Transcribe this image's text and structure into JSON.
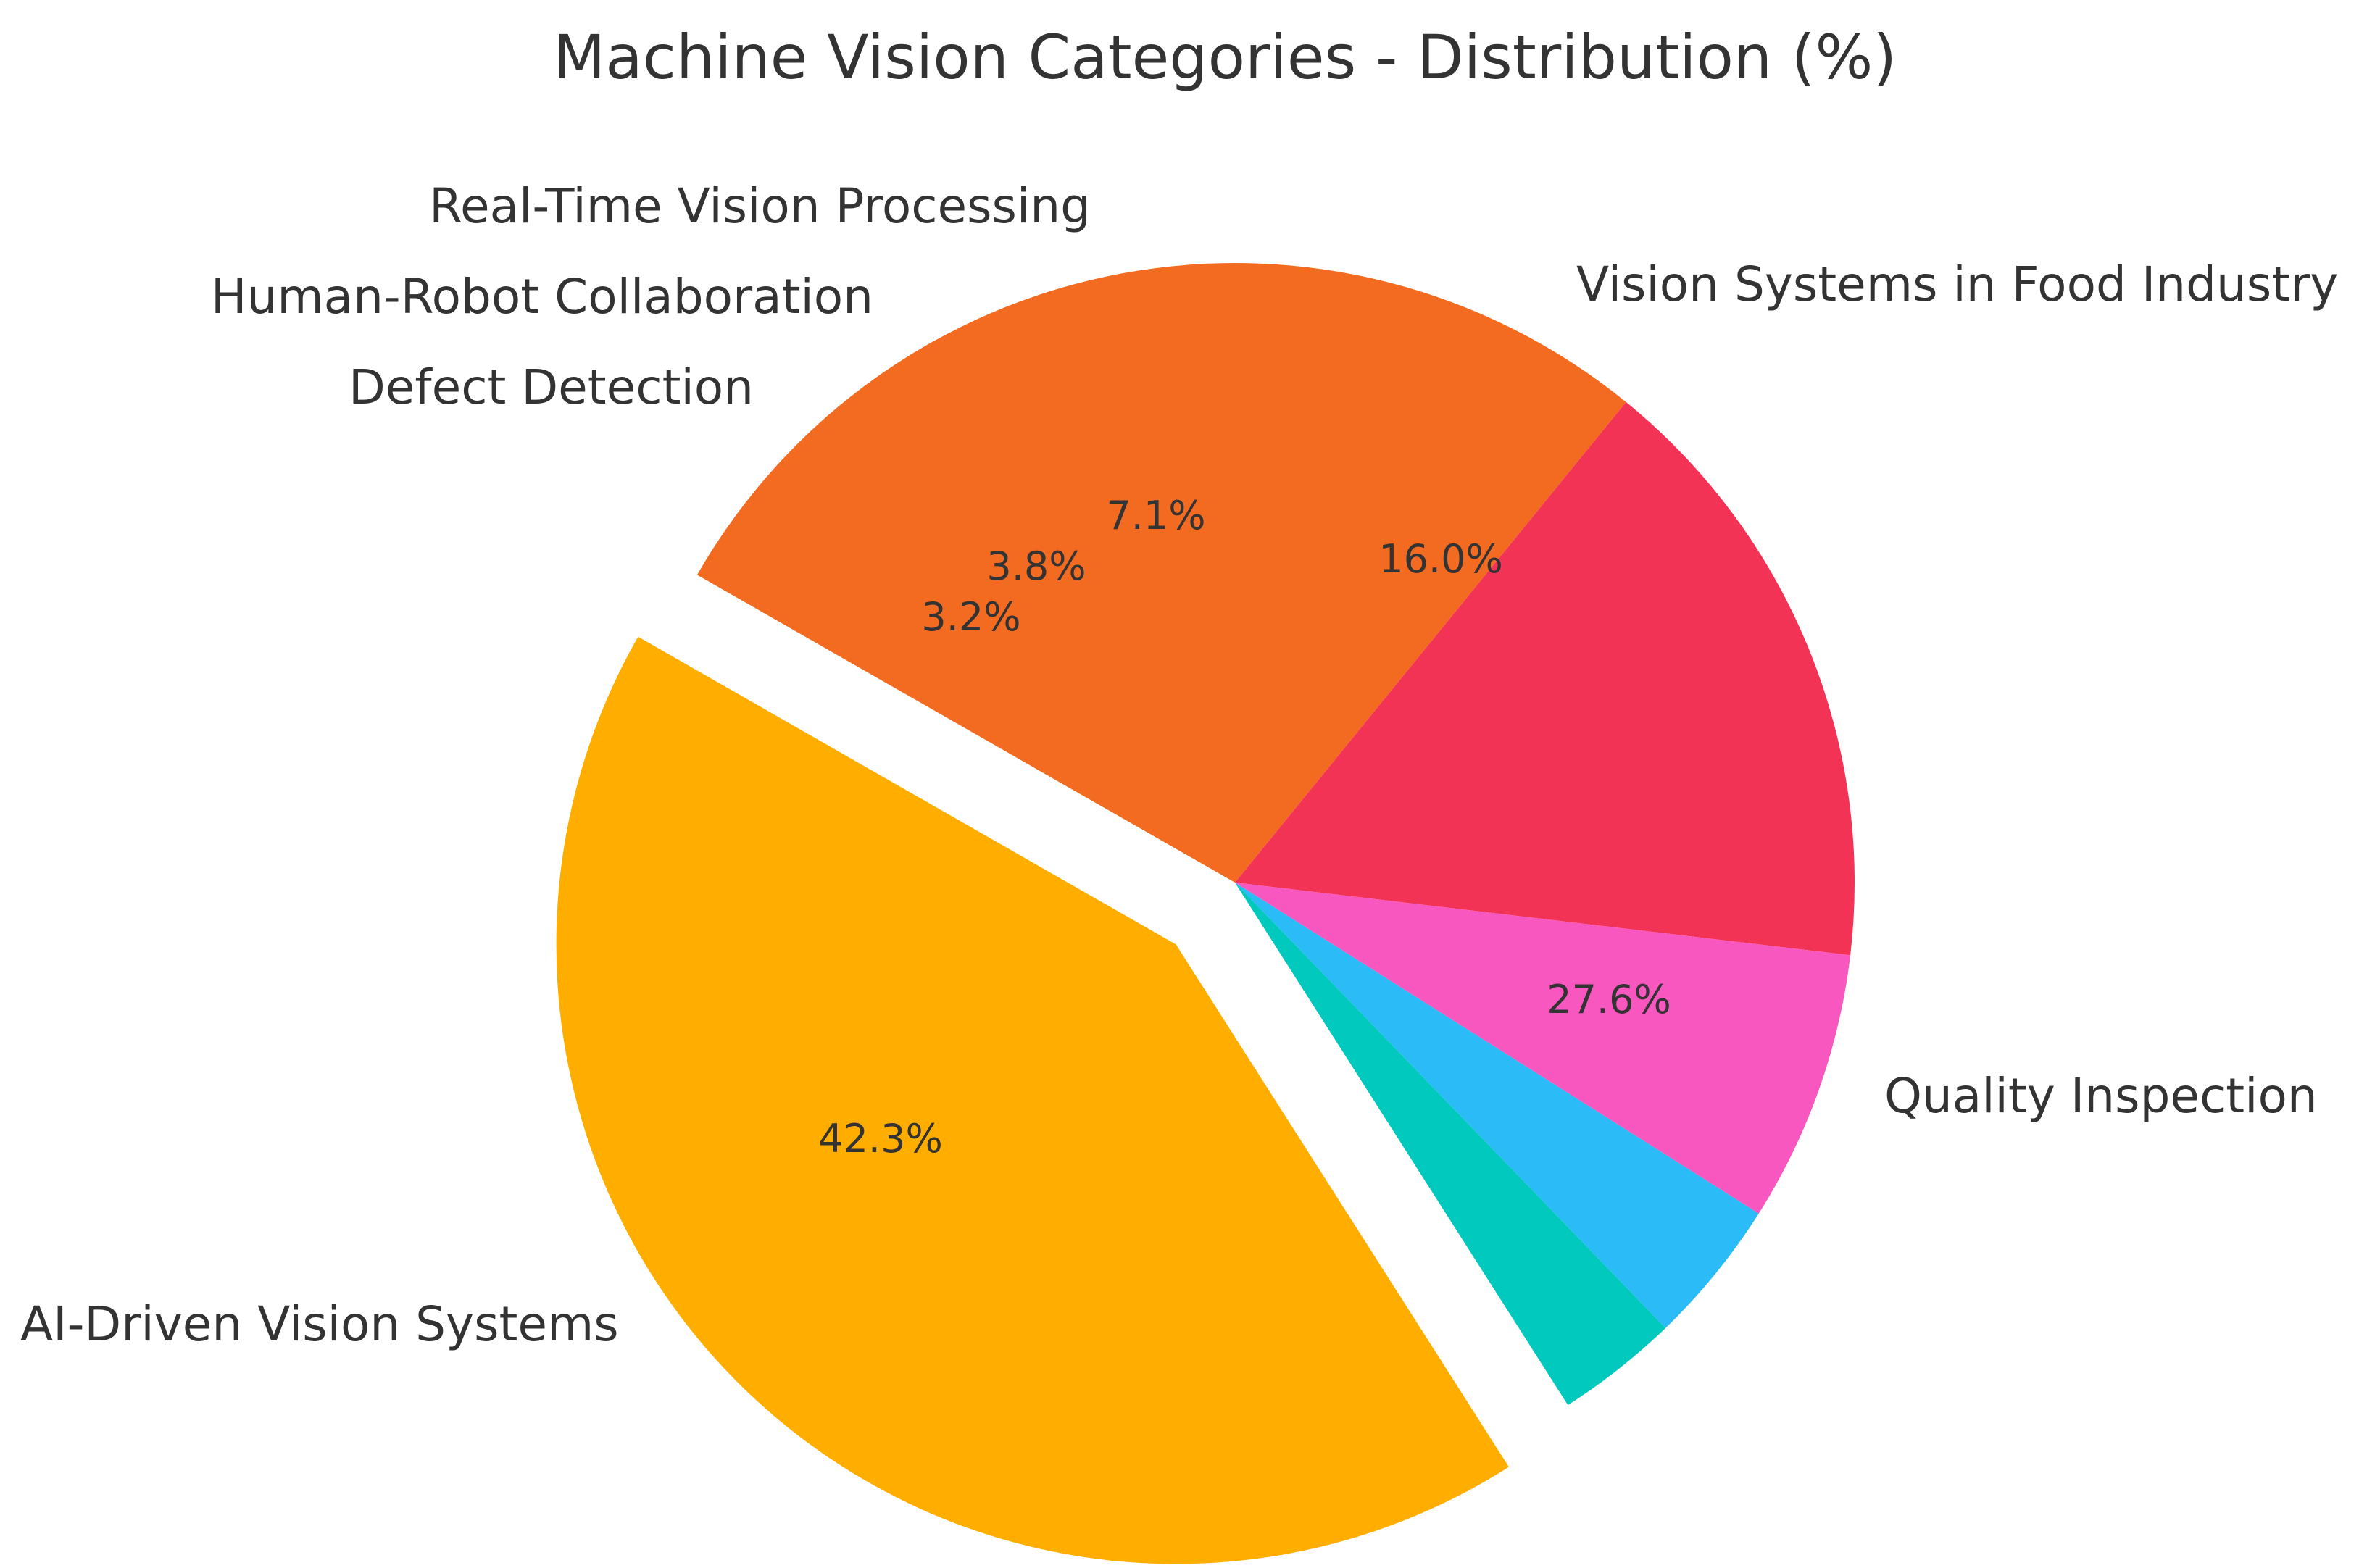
{
  "chart_data": {
    "type": "pie",
    "title": "Machine Vision Categories - Distribution (%)",
    "slices": [
      {
        "label": "AI-Driven Vision Systems",
        "value": 42.3,
        "pct_label": "42.3%",
        "color": "#FFAE00",
        "explode": true
      },
      {
        "label": "Quality Inspection",
        "value": 27.6,
        "pct_label": "27.6%",
        "color": "#F26B21",
        "explode": false
      },
      {
        "label": "Vision Systems in Food Industry",
        "value": 16.0,
        "pct_label": "16.0%",
        "color": "#F23356",
        "explode": false
      },
      {
        "label": "Real-Time Vision Processing",
        "value": 7.1,
        "pct_label": "7.1%",
        "color": "#F757BF",
        "explode": false
      },
      {
        "label": "Human-Robot Collaboration",
        "value": 3.8,
        "pct_label": "3.8%",
        "color": "#2BBCF7",
        "explode": false
      },
      {
        "label": "Defect Detection",
        "value": 3.2,
        "pct_label": "3.2%",
        "color": "#02C9BD",
        "explode": false
      }
    ],
    "direction": "clockwise",
    "first_slice_starts_at": "bottom-right",
    "legend": "none"
  }
}
